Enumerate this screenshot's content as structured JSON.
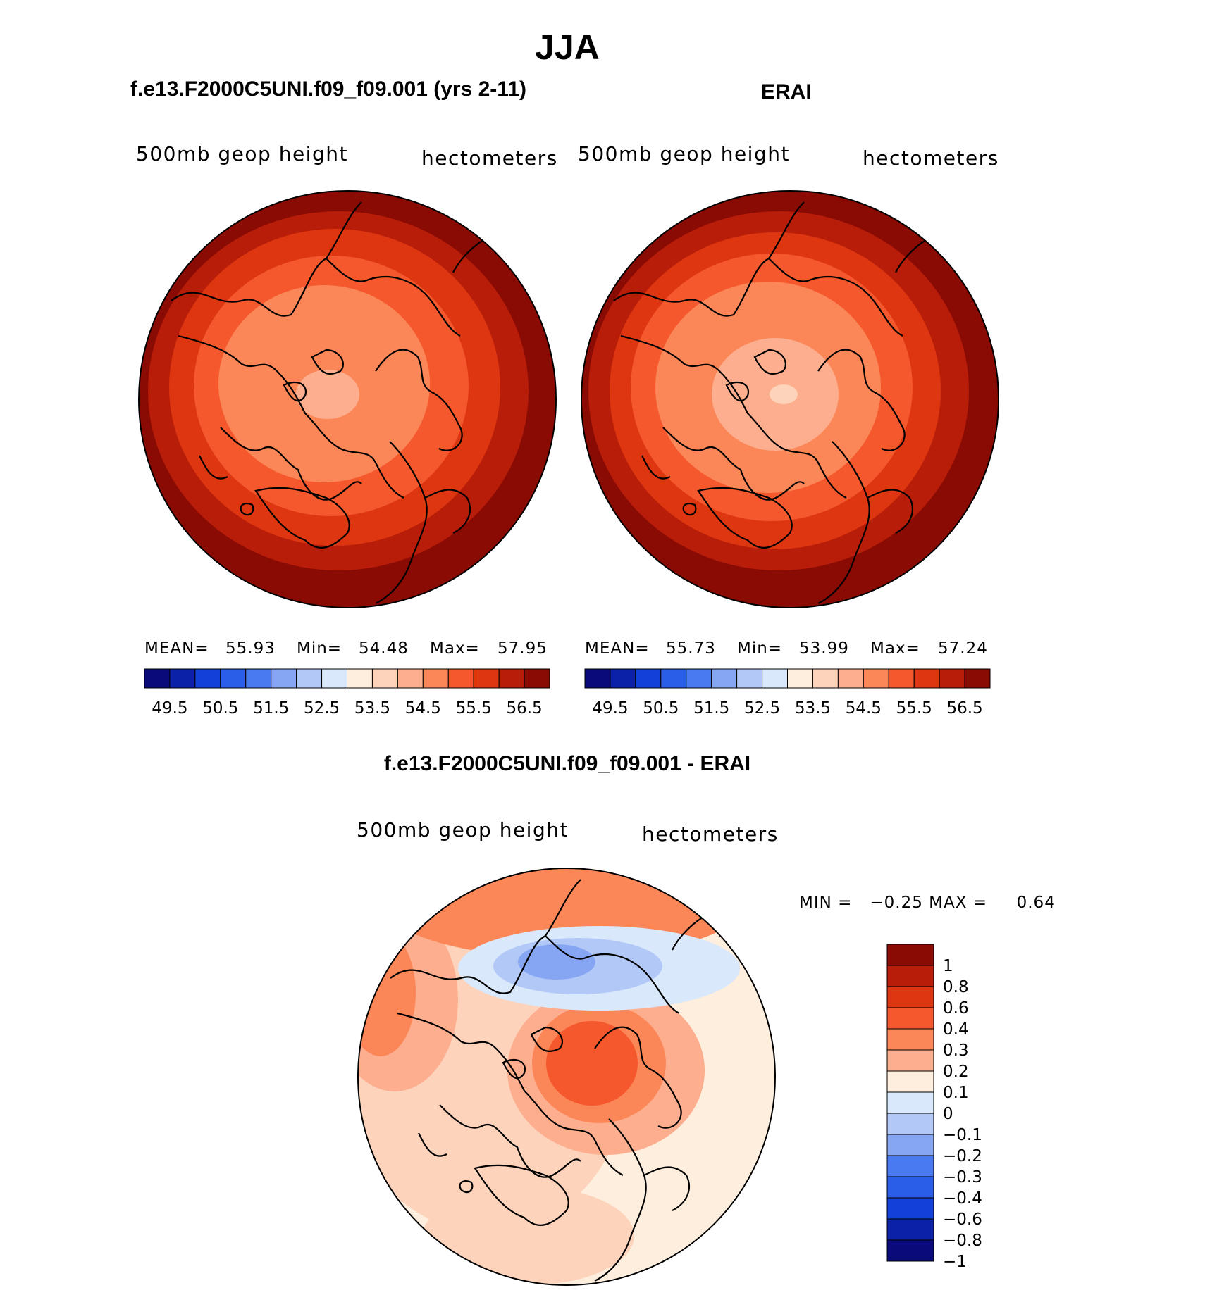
{
  "figure": {
    "season": "JJA",
    "panels": [
      {
        "title": "f.e13.F2000C5UNI.f09_f09.001 (yrs 2-11)",
        "left_label": "500mb  geop  height",
        "right_label": "hectometers",
        "stats": {
          "mean_label": "MEAN=",
          "mean": "55.93",
          "min_label": "Min=",
          "min": "54.48",
          "max_label": "Max=",
          "max": "57.95"
        }
      },
      {
        "title": "ERAI",
        "left_label": "500mb  geop  height",
        "right_label": "hectometers",
        "stats": {
          "mean_label": "MEAN=",
          "mean": "55.73",
          "min_label": "Min=",
          "min": "53.99",
          "max_label": "Max=",
          "max": "57.24"
        }
      },
      {
        "title": "f.e13.F2000C5UNI.f09_f09.001 - ERAI",
        "left_label": "500mb  geop  height",
        "right_label": "hectometers",
        "stats_text": "MIN =   −0.25 MAX =     0.64"
      }
    ],
    "abs_colorbar": {
      "colors": [
        "#0a0a7a",
        "#0b22a8",
        "#1240d8",
        "#2a5ee8",
        "#4a7af0",
        "#86a6f4",
        "#b2c8f7",
        "#d9e8fb",
        "#feeedd",
        "#fdd3bb",
        "#fcae8e",
        "#fb8758",
        "#f4582c",
        "#dd3610",
        "#b71d08",
        "#8a0a04"
      ],
      "ticks": [
        "49.5",
        "50.5",
        "51.5",
        "52.5",
        "53.5",
        "54.5",
        "55.5",
        "56.5"
      ]
    },
    "diff_colorbar": {
      "colors": [
        "#8a0a04",
        "#b71d08",
        "#dd3610",
        "#f4582c",
        "#fb8758",
        "#fcae8e",
        "#feeedd",
        "#d9e8fb",
        "#b2c8f7",
        "#86a6f4",
        "#4a7af0",
        "#2a5ee8",
        "#1240d8",
        "#0b22a8",
        "#0a0a7a"
      ],
      "ticks": [
        "1",
        "0.8",
        "0.6",
        "0.4",
        "0.3",
        "0.2",
        "0.1",
        "0",
        "−0.1",
        "−0.2",
        "−0.3",
        "−0.4",
        "−0.6",
        "−0.8",
        "−1"
      ]
    }
  }
}
